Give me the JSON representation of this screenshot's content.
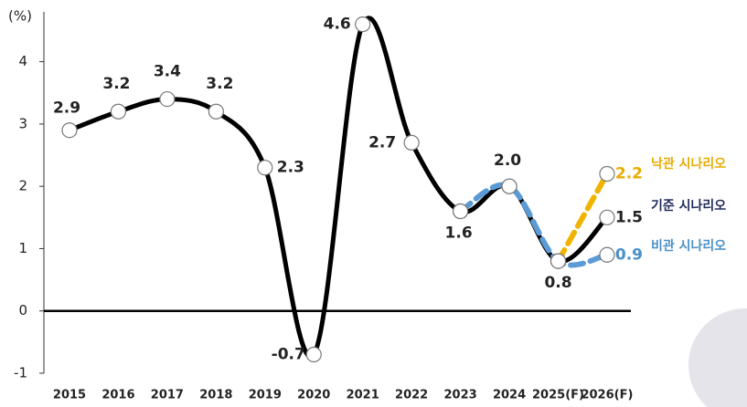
{
  "chart_data": {
    "type": "line",
    "y_label": "(%)",
    "categories": [
      "2015",
      "2016",
      "2017",
      "2018",
      "2019",
      "2020",
      "2021",
      "2022",
      "2023",
      "2024",
      "2025(F)",
      "2026(F)"
    ],
    "series": [
      {
        "name": "기준 시나리오",
        "color": "#1f2a5a",
        "line_color": "#000000",
        "dashed": false,
        "values": [
          2.9,
          3.2,
          3.4,
          3.2,
          2.3,
          -0.7,
          4.6,
          2.7,
          1.6,
          2.0,
          0.8,
          1.5
        ],
        "value_labels": [
          "2.9",
          "3.2",
          "3.4",
          "3.2",
          "2.3",
          "-0.7",
          "4.6",
          "2.7",
          "1.6",
          "2.0",
          "0.8",
          "1.5"
        ]
      },
      {
        "name": "낙관 시나리오",
        "color": "#e8ac00",
        "line_color": "#f0b400",
        "dashed": true,
        "values": [
          null,
          null,
          null,
          null,
          null,
          null,
          null,
          null,
          null,
          null,
          0.8,
          2.2
        ]
      },
      {
        "name": "비관 시나리오",
        "color": "#4a90c8",
        "line_color": "#5b9bd5",
        "dashed": true,
        "values": [
          null,
          null,
          null,
          null,
          null,
          null,
          null,
          null,
          1.6,
          2.0,
          0.8,
          0.9
        ]
      }
    ],
    "ylim": [
      -1,
      4.8
    ],
    "yticks": [
      -1,
      0,
      1,
      2,
      3,
      4
    ]
  }
}
